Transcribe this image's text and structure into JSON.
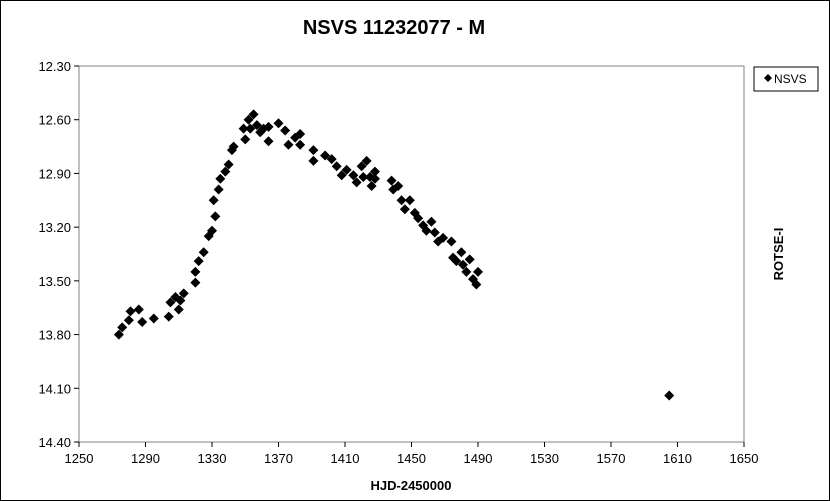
{
  "chart_data": {
    "type": "scatter",
    "title": "NSVS 11232077 - M",
    "xlabel": "HJD-2450000",
    "ylabel": "ROTSE-I",
    "xlim": [
      1250,
      1650
    ],
    "ylim": [
      12.3,
      14.4
    ],
    "y_inverted": true,
    "x_ticks": [
      "1250",
      "1290",
      "1330",
      "1370",
      "1410",
      "1450",
      "1490",
      "1530",
      "1570",
      "1610",
      "1650"
    ],
    "y_ticks": [
      "12.30",
      "12.60",
      "12.90",
      "13.20",
      "13.50",
      "13.80",
      "14.10",
      "14.40"
    ],
    "grid": false,
    "legend": {
      "position": "top-right",
      "entries": [
        "NSVS"
      ]
    },
    "marker_color": "#000000",
    "series": [
      {
        "name": "NSVS",
        "points": [
          [
            1274,
            13.8
          ],
          [
            1276,
            13.76
          ],
          [
            1280,
            13.72
          ],
          [
            1281,
            13.67
          ],
          [
            1286,
            13.66
          ],
          [
            1288,
            13.73
          ],
          [
            1295,
            13.71
          ],
          [
            1304,
            13.7
          ],
          [
            1305,
            13.62
          ],
          [
            1308,
            13.59
          ],
          [
            1310,
            13.66
          ],
          [
            1311,
            13.61
          ],
          [
            1313,
            13.57
          ],
          [
            1320,
            13.51
          ],
          [
            1320,
            13.45
          ],
          [
            1322,
            13.39
          ],
          [
            1325,
            13.34
          ],
          [
            1328,
            13.25
          ],
          [
            1330,
            13.22
          ],
          [
            1332,
            13.14
          ],
          [
            1331,
            13.05
          ],
          [
            1334,
            12.99
          ],
          [
            1335,
            12.93
          ],
          [
            1338,
            12.89
          ],
          [
            1340,
            12.85
          ],
          [
            1342,
            12.77
          ],
          [
            1343,
            12.75
          ],
          [
            1349,
            12.65
          ],
          [
            1350,
            12.71
          ],
          [
            1352,
            12.6
          ],
          [
            1353,
            12.65
          ],
          [
            1355,
            12.57
          ],
          [
            1357,
            12.63
          ],
          [
            1359,
            12.67
          ],
          [
            1361,
            12.65
          ],
          [
            1364,
            12.72
          ],
          [
            1364,
            12.64
          ],
          [
            1370,
            12.62
          ],
          [
            1374,
            12.66
          ],
          [
            1376,
            12.74
          ],
          [
            1380,
            12.7
          ],
          [
            1383,
            12.68
          ],
          [
            1383,
            12.74
          ],
          [
            1391,
            12.77
          ],
          [
            1391,
            12.83
          ],
          [
            1398,
            12.8
          ],
          [
            1402,
            12.82
          ],
          [
            1405,
            12.86
          ],
          [
            1408,
            12.91
          ],
          [
            1411,
            12.88
          ],
          [
            1415,
            12.91
          ],
          [
            1417,
            12.95
          ],
          [
            1420,
            12.86
          ],
          [
            1421,
            12.92
          ],
          [
            1423,
            12.83
          ],
          [
            1425,
            12.92
          ],
          [
            1426,
            12.97
          ],
          [
            1428,
            12.89
          ],
          [
            1428,
            12.93
          ],
          [
            1438,
            12.94
          ],
          [
            1439,
            12.99
          ],
          [
            1442,
            12.97
          ],
          [
            1444,
            13.05
          ],
          [
            1446,
            13.1
          ],
          [
            1449,
            13.05
          ],
          [
            1452,
            13.12
          ],
          [
            1454,
            13.15
          ],
          [
            1457,
            13.19
          ],
          [
            1459,
            13.22
          ],
          [
            1462,
            13.17
          ],
          [
            1464,
            13.23
          ],
          [
            1466,
            13.28
          ],
          [
            1469,
            13.26
          ],
          [
            1474,
            13.28
          ],
          [
            1475,
            13.37
          ],
          [
            1477,
            13.39
          ],
          [
            1480,
            13.34
          ],
          [
            1481,
            13.41
          ],
          [
            1483,
            13.45
          ],
          [
            1485,
            13.38
          ],
          [
            1487,
            13.49
          ],
          [
            1489,
            13.52
          ],
          [
            1490,
            13.45
          ],
          [
            1605,
            14.14
          ]
        ]
      }
    ]
  }
}
